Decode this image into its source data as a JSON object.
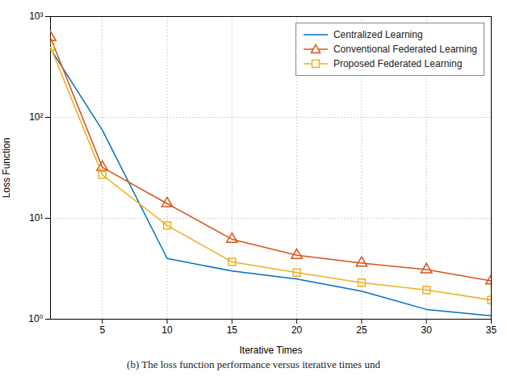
{
  "chart_data": {
    "type": "line",
    "xlabel": "Iterative Times",
    "ylabel": "Loss Function",
    "caption": "(b)  The loss function performance versus iterative times und",
    "x": [
      1,
      5,
      10,
      15,
      20,
      25,
      30,
      35
    ],
    "series": [
      {
        "name": "Centralized Learning",
        "color": "#0072bd",
        "marker": "none",
        "values": [
          480,
          75,
          4.0,
          3.0,
          2.5,
          1.9,
          1.25,
          1.08
        ]
      },
      {
        "name": "Conventional Federated Learning",
        "color": "#d95319",
        "marker": "triangle",
        "values": [
          620,
          32,
          14.0,
          6.2,
          4.3,
          3.6,
          3.1,
          2.4
        ]
      },
      {
        "name": "Proposed Federated Learning",
        "color": "#edb120",
        "marker": "square",
        "values": [
          500,
          27,
          8.5,
          3.7,
          2.9,
          2.3,
          1.95,
          1.55
        ]
      }
    ],
    "xlim": [
      1,
      35
    ],
    "ylim": [
      1,
      1000
    ],
    "xticks": [
      5,
      10,
      15,
      20,
      25,
      30,
      35
    ],
    "yticks": [
      {
        "value": 1,
        "label": "10⁰"
      },
      {
        "value": 10,
        "label": "10¹"
      },
      {
        "value": 100,
        "label": "10²"
      },
      {
        "value": 1000,
        "label": "10³"
      }
    ],
    "log": "y",
    "grid": true,
    "legend": "upper right"
  }
}
